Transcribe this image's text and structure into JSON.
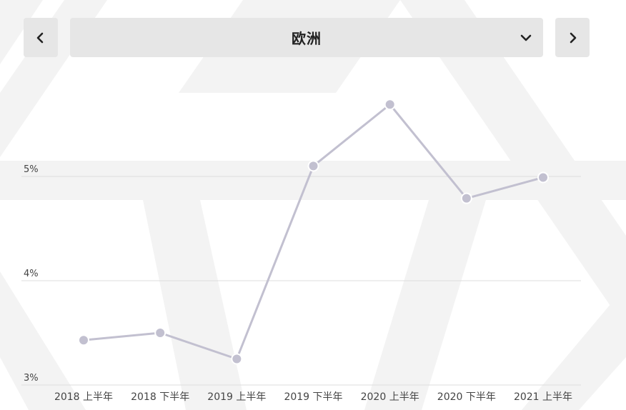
{
  "header": {
    "region": "欧洲",
    "prev_icon": "chevron-left-icon",
    "next_icon": "chevron-right-icon",
    "dropdown_icon": "chevron-down-icon"
  },
  "chart_data": {
    "type": "line",
    "categories": [
      "2018 上半年",
      "2018 下半年",
      "2019 上半年",
      "2019 下半年",
      "2020 上半年",
      "2020 下半年",
      "2021 上半年"
    ],
    "series": [
      {
        "values": [
          3.43,
          3.5,
          3.25,
          5.1,
          5.69,
          4.79,
          4.99
        ],
        "color": "#c2c0d0"
      }
    ],
    "yticks": [
      {
        "value": 3,
        "label": "3%"
      },
      {
        "value": 4,
        "label": "4%"
      },
      {
        "value": 5,
        "label": "5%"
      }
    ],
    "ylim": [
      3,
      6
    ],
    "grid": true,
    "xlabel": "",
    "ylabel": "",
    "title": ""
  }
}
